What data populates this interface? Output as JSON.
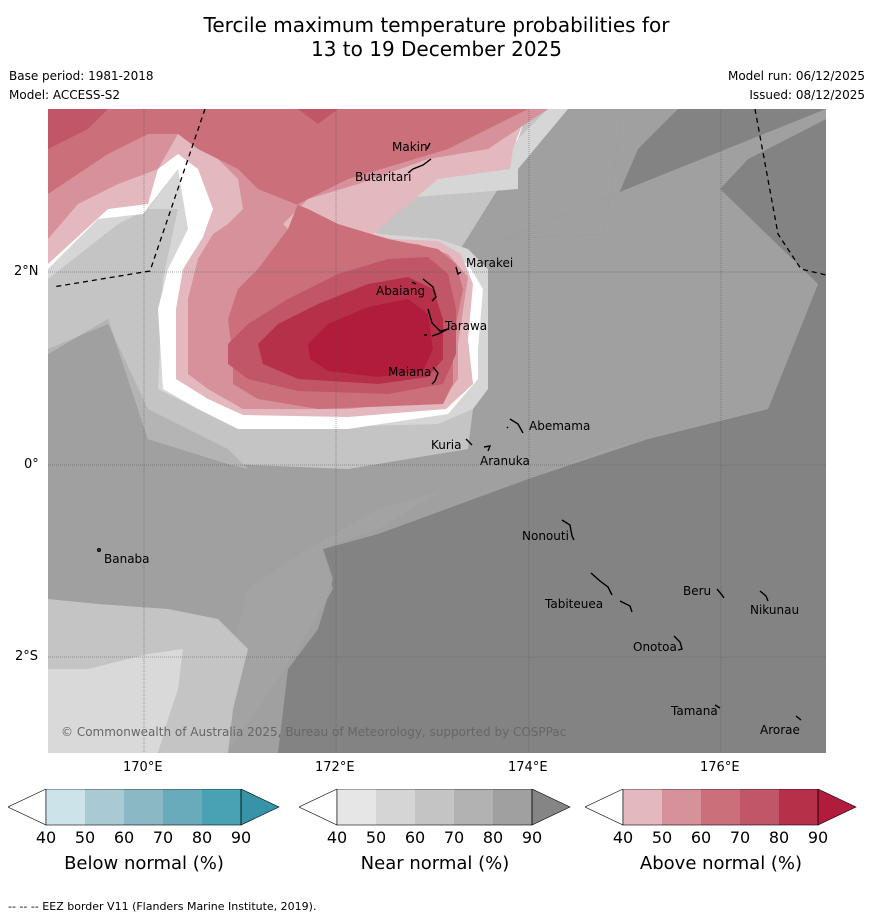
{
  "title": {
    "line1": "Tercile maximum temperature probabilities for",
    "line2": "13 to 19 December 2025"
  },
  "meta": {
    "base_period": "Base period: 1981-2018",
    "model": "Model: ACCESS-S2",
    "model_run": "Model run: 06/12/2025",
    "issued": "Issued: 08/12/2025"
  },
  "map": {
    "copyright": "© Commonwealth of Australia 2025, Bureau of Meteorology, supported by COSPPac",
    "lat_labels": [
      "2°N",
      "0°",
      "2°S"
    ],
    "lon_labels": [
      "170°E",
      "172°E",
      "174°E",
      "176°E"
    ],
    "places": [
      "Makin",
      "Butaritari",
      "Marakei",
      "Abaiang",
      "Tarawa",
      "Maiana",
      "Abemama",
      "Kuria",
      "Aranuka",
      "Nonouti",
      "Banaba",
      "Beru",
      "Nikunau",
      "Tabiteuea",
      "Onotoa",
      "Tamana",
      "Arorae"
    ]
  },
  "colorbars": {
    "ticks": [
      "40",
      "50",
      "60",
      "70",
      "80",
      "90"
    ],
    "below": {
      "title": "Below normal (%)",
      "colors": [
        "#ffffff",
        "#cce3ea",
        "#a9cad3",
        "#8ab8c5",
        "#6aabbb",
        "#48a2b3",
        "#3693a8"
      ]
    },
    "near": {
      "title": "Near normal (%)",
      "colors": [
        "#ffffff",
        "#e6e6e6",
        "#d5d5d5",
        "#c4c4c4",
        "#b2b2b2",
        "#a0a0a0",
        "#858585"
      ]
    },
    "above": {
      "title": "Above normal (%)",
      "colors": [
        "#ffffff",
        "#e3b8bf",
        "#d6919b",
        "#cb6f7b",
        "#c15668",
        "#b6304a",
        "#b11c3d"
      ]
    }
  },
  "footer": "-- -- -- EEZ border V11 (Flanders Marine Institute, 2019)."
}
